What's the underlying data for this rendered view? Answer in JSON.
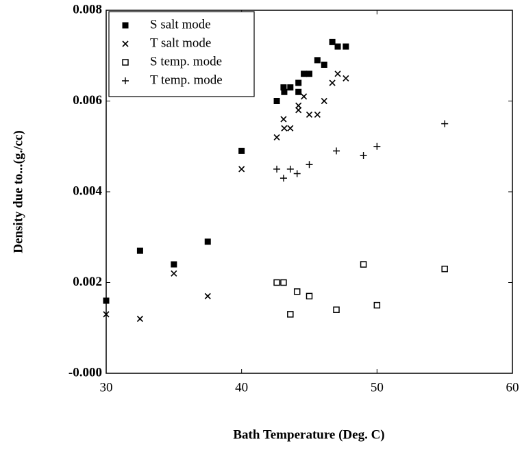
{
  "chart_data": {
    "type": "scatter",
    "xlabel": "Bath Temperature (Deg. C)",
    "ylabel": "Density due to...(g./cc)",
    "xlim": [
      30,
      60
    ],
    "xticks": [
      30,
      40,
      50,
      60
    ],
    "ylim": [
      0,
      0.008
    ],
    "yticks": [
      {
        "value": 0,
        "label": "-0.000"
      },
      0.002,
      0.004,
      0.006,
      0.008
    ],
    "legend": "upper left",
    "series": [
      {
        "name": "S salt mode",
        "marker": "filled-square",
        "color": "#000000",
        "x": [
          30,
          32.5,
          35,
          37.5,
          40,
          42.6,
          43.1,
          43.15,
          43.6,
          44.2,
          44.2,
          44.6,
          45.0,
          45.6,
          46.1,
          46.7,
          47.1,
          47.7
        ],
        "values": [
          0.0016,
          0.0027,
          0.0024,
          0.0029,
          0.0049,
          0.006,
          0.0063,
          0.0062,
          0.0063,
          0.0062,
          0.0064,
          0.0066,
          0.0066,
          0.0069,
          0.0068,
          0.0073,
          0.0072,
          0.0072
        ]
      },
      {
        "name": "T salt mode",
        "marker": "cross",
        "color": "#000000",
        "x": [
          30,
          32.5,
          35,
          37.5,
          40,
          42.6,
          43.1,
          43.15,
          43.6,
          44.2,
          44.2,
          44.6,
          45.0,
          45.6,
          46.1,
          46.7,
          47.1,
          47.7
        ],
        "values": [
          0.0013,
          0.0012,
          0.0022,
          0.0017,
          0.0045,
          0.0052,
          0.0056,
          0.0054,
          0.0054,
          0.0058,
          0.0059,
          0.0061,
          0.0057,
          0.0057,
          0.006,
          0.0064,
          0.0066,
          0.0065
        ]
      },
      {
        "name": "S temp. mode",
        "marker": "open-square",
        "color": "#000000",
        "x": [
          42.6,
          43.1,
          43.6,
          44.1,
          45.0,
          47.0,
          49.0,
          50.0,
          55.0
        ],
        "values": [
          0.002,
          0.002,
          0.0013,
          0.0018,
          0.0017,
          0.0014,
          0.0024,
          0.0015,
          0.0023
        ]
      },
      {
        "name": "T temp. mode",
        "marker": "plus",
        "color": "#000000",
        "x": [
          42.6,
          43.1,
          43.6,
          44.1,
          45.0,
          47.0,
          49.0,
          50.0,
          55.0
        ],
        "values": [
          0.0045,
          0.0043,
          0.0045,
          0.0044,
          0.0046,
          0.0049,
          0.0048,
          0.005,
          0.0055
        ]
      }
    ]
  }
}
